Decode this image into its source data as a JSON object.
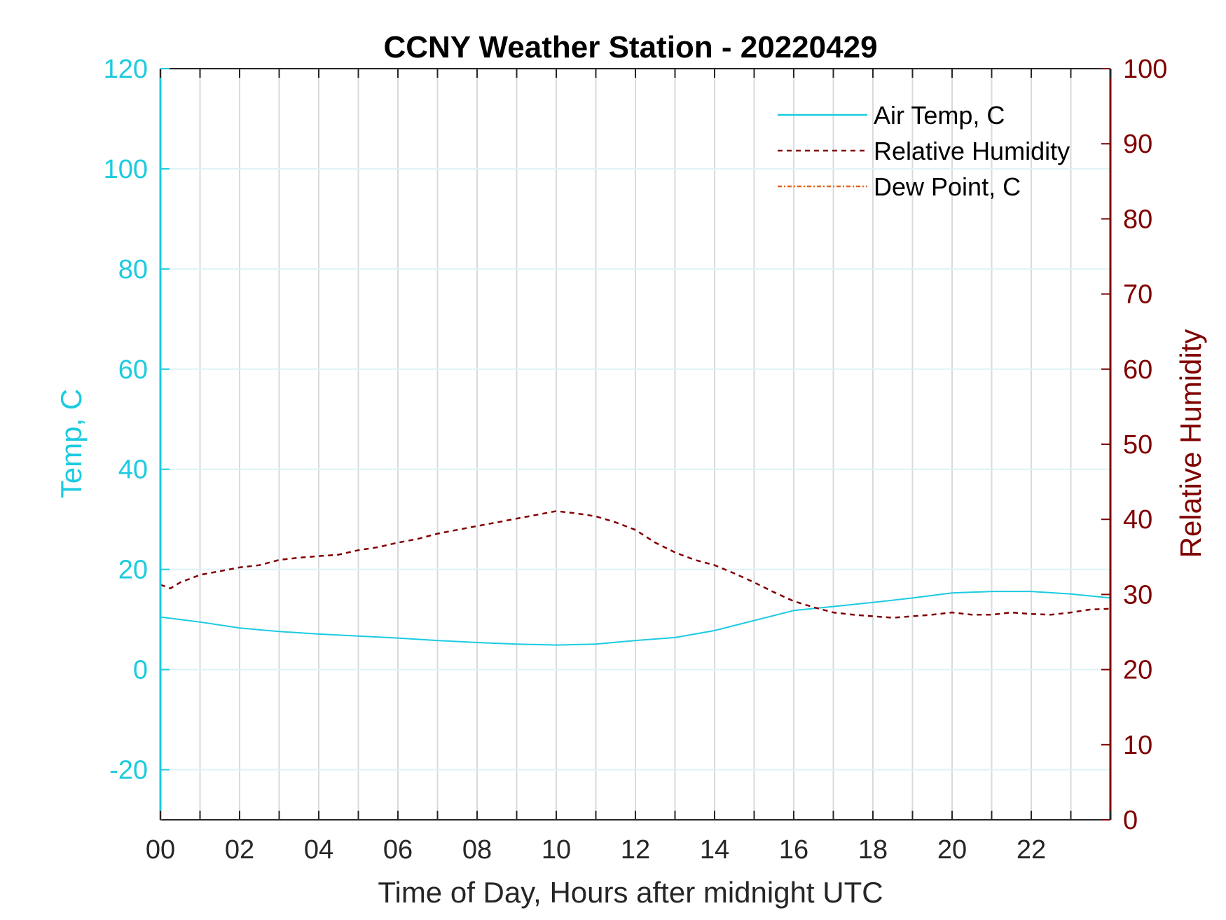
{
  "colors": {
    "temp_axis": "#1ccbe0",
    "rh_axis": "#800000",
    "dewpoint": "#e8641e",
    "grid": "#d6dbe0",
    "frame": "#262626"
  },
  "chart_data": {
    "type": "line",
    "title": "CCNY Weather Station - 20220429",
    "xlabel": "Time of Day, Hours after midnight UTC",
    "ylabel_left": "Temp, C",
    "ylabel_right": "Relative Humidity",
    "xlim": [
      0,
      24
    ],
    "ylim_left": [
      -30,
      120
    ],
    "ylim_right": [
      0,
      100
    ],
    "x_ticks": [
      0,
      2,
      4,
      6,
      8,
      10,
      12,
      14,
      16,
      18,
      20,
      22
    ],
    "x_tick_labels": [
      "00",
      "02",
      "04",
      "06",
      "08",
      "10",
      "12",
      "14",
      "16",
      "18",
      "20",
      "22"
    ],
    "y_left_ticks": [
      -20,
      0,
      20,
      40,
      60,
      80,
      100,
      120
    ],
    "y_left_tick_labels": [
      "-20",
      "0",
      "20",
      "40",
      "60",
      "80",
      "100",
      "120"
    ],
    "y_right_ticks": [
      0,
      10,
      20,
      30,
      40,
      50,
      60,
      70,
      80,
      90,
      100
    ],
    "y_right_tick_labels": [
      "0",
      "10",
      "20",
      "30",
      "40",
      "50",
      "60",
      "70",
      "80",
      "90",
      "100"
    ],
    "grid": true,
    "legend_position": "top-right",
    "series": [
      {
        "name": "Air Temp, C",
        "axis": "left",
        "style": "solid",
        "color": "#1ccbe0",
        "x": [
          0,
          1,
          2,
          3,
          4,
          5,
          6,
          7,
          8,
          9,
          10,
          11,
          12,
          13,
          14,
          15,
          16,
          17,
          18,
          19,
          20,
          21,
          22,
          23,
          24
        ],
        "y": [
          10.5,
          9.5,
          8.3,
          7.6,
          7.1,
          6.7,
          6.3,
          5.8,
          5.4,
          5.1,
          4.9,
          5.1,
          5.8,
          6.4,
          7.8,
          9.8,
          11.8,
          12.6,
          13.4,
          14.3,
          15.3,
          15.6,
          15.6,
          15.1,
          14.3
        ]
      },
      {
        "name": "Relative Humidity",
        "axis": "right",
        "style": "dashed",
        "color": "#800000",
        "x": [
          0,
          0.25,
          0.5,
          1,
          1.5,
          2,
          2.5,
          3,
          3.5,
          4,
          4.5,
          5,
          5.5,
          6,
          6.5,
          7,
          7.5,
          8,
          8.5,
          9,
          9.5,
          10,
          10.5,
          11,
          11.5,
          12,
          12.5,
          13,
          13.5,
          14,
          14.5,
          15,
          15.5,
          16,
          16.5,
          17,
          17.5,
          18,
          18.5,
          19,
          19.5,
          20,
          20.5,
          21,
          21.5,
          22,
          22.5,
          23,
          23.5,
          24
        ],
        "y": [
          31.3,
          30.8,
          31.6,
          32.6,
          33.1,
          33.6,
          33.9,
          34.6,
          34.9,
          35.1,
          35.3,
          35.9,
          36.3,
          36.9,
          37.4,
          38.1,
          38.6,
          39.1,
          39.6,
          40.1,
          40.6,
          41.1,
          40.8,
          40.4,
          39.6,
          38.6,
          36.9,
          35.6,
          34.6,
          33.9,
          32.8,
          31.6,
          30.3,
          29.1,
          28.3,
          27.6,
          27.3,
          27.1,
          26.9,
          27.1,
          27.3,
          27.6,
          27.3,
          27.3,
          27.6,
          27.4,
          27.3,
          27.6,
          28.0,
          28.1
        ]
      },
      {
        "name": "Dew Point, C",
        "axis": "left",
        "style": "dash-dot",
        "color": "#e8641e",
        "x": [],
        "y": []
      }
    ]
  }
}
